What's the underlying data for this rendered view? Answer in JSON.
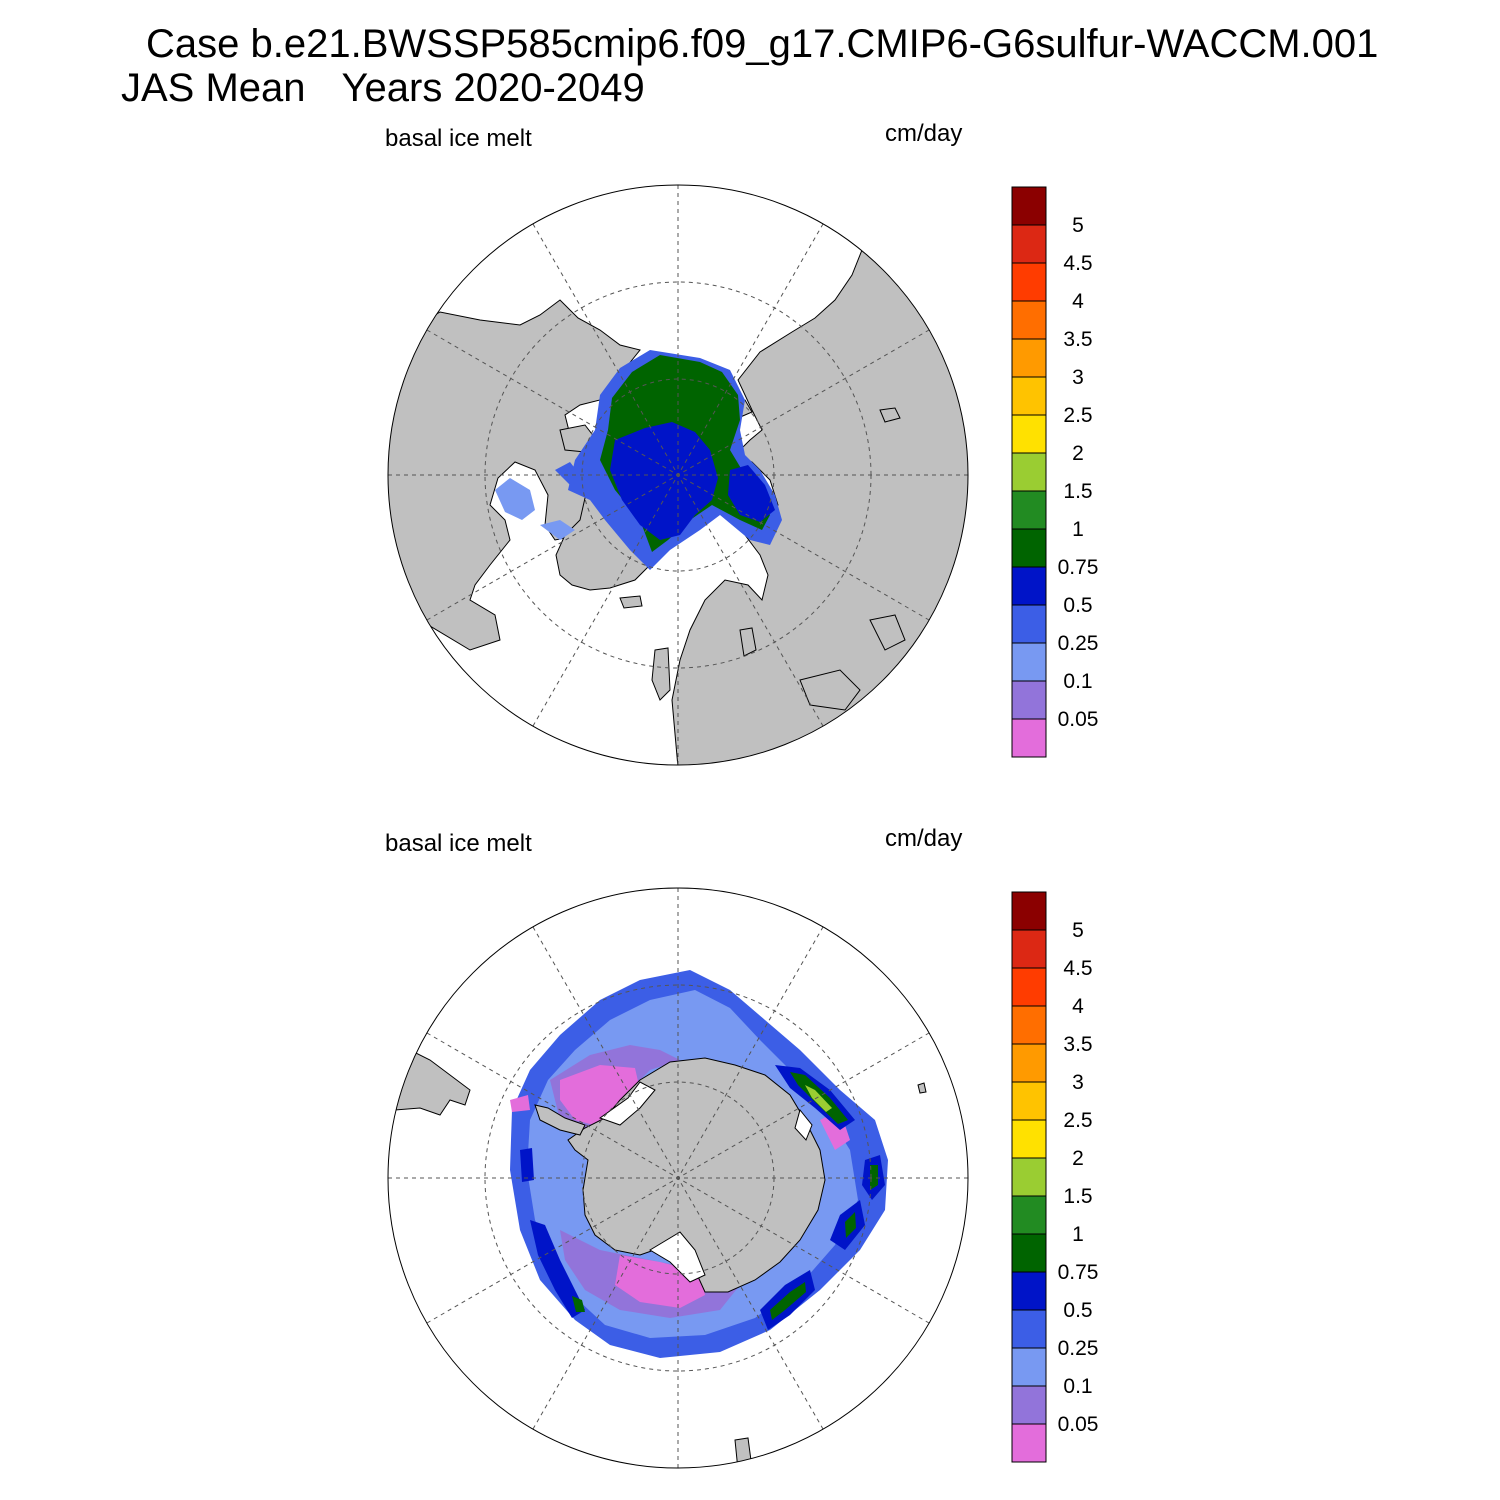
{
  "title": {
    "case_line": "Case b.e21.BWSSP585cmip6.f09_g17.CMIP6-G6sulfur-WACCM.001",
    "mean_label": "JAS Mean",
    "years_label": "Years 2020-2049"
  },
  "panels": [
    {
      "hemisphere": "north",
      "variable_label": "basal ice melt",
      "units_label": "cm/day"
    },
    {
      "hemisphere": "south",
      "variable_label": "basal ice melt",
      "units_label": "cm/day"
    }
  ],
  "colorbar": {
    "levels": [
      "0.05",
      "0.1",
      "0.25",
      "0.5",
      "0.75",
      "1",
      "1.5",
      "2",
      "2.5",
      "3",
      "3.5",
      "4",
      "4.5",
      "5"
    ],
    "colors": [
      "#e36ddb",
      "#9274da",
      "#7899f2",
      "#3c5ee6",
      "#0014c8",
      "#006400",
      "#228b22",
      "#9acd32",
      "#ffe100",
      "#ffc300",
      "#ff9a00",
      "#ff6e00",
      "#ff3c00",
      "#dc2814",
      "#8b0000"
    ]
  },
  "colors": {
    "land": "#c0c0c0",
    "ocean_no_ice": "#ffffff",
    "grid": "#555555"
  }
}
